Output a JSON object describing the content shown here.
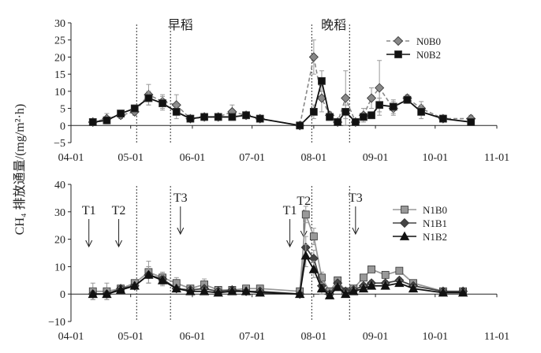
{
  "chart_data": [
    {
      "type": "line",
      "ylabel": "CH₄ 排放通量/(mg/m²·h)",
      "x_ticks": [
        "04-01",
        "05-01",
        "06-01",
        "07-01",
        "08-01",
        "09-01",
        "10-01",
        "11-01"
      ],
      "y_ticks": [
        "30",
        "25",
        "20",
        "15",
        "10",
        "5",
        "0",
        "−5"
      ],
      "ylim": [
        -5,
        30
      ],
      "xlim": [
        "04-01",
        "11-01"
      ],
      "grid": false,
      "legend_position": "top-right",
      "annotations": [
        {
          "text": "早稻",
          "x": "05-26"
        },
        {
          "text": "晚稻",
          "x": "08-11"
        }
      ],
      "vlines": [
        "05-04",
        "05-21",
        "07-31",
        "08-19"
      ],
      "series": [
        {
          "name": "N0B0",
          "color": "#888888",
          "line": "dashed",
          "marker": "diamond",
          "points": [
            [
              "04-12",
              1
            ],
            [
              "04-19",
              2
            ],
            [
              "04-26",
              3
            ],
            [
              "05-03",
              4
            ],
            [
              "05-10",
              9
            ],
            [
              "05-17",
              7
            ],
            [
              "05-24",
              6
            ],
            [
              "05-31",
              2
            ],
            [
              "06-07",
              2.5
            ],
            [
              "06-14",
              2.5
            ],
            [
              "06-21",
              4
            ],
            [
              "06-28",
              3
            ],
            [
              "07-05",
              2
            ],
            [
              "07-25",
              0
            ],
            [
              "08-01",
              20
            ],
            [
              "08-05",
              8
            ],
            [
              "08-09",
              3
            ],
            [
              "08-13",
              1
            ],
            [
              "08-17",
              8
            ],
            [
              "08-22",
              1
            ],
            [
              "08-26",
              3
            ],
            [
              "08-30",
              8
            ],
            [
              "09-03",
              11
            ],
            [
              "09-10",
              5
            ],
            [
              "09-17",
              8
            ],
            [
              "09-24",
              5
            ],
            [
              "10-05",
              2
            ],
            [
              "10-19",
              2
            ]
          ],
          "err": [
            0.8,
            1.5,
            1,
            1,
            3,
            2,
            3,
            1,
            1,
            1,
            2,
            1,
            0.5,
            0.5,
            5,
            4,
            1,
            0.5,
            8,
            1,
            2,
            3,
            8,
            2,
            1,
            2,
            1,
            1
          ]
        },
        {
          "name": "N0B2",
          "color": "#111111",
          "line": "solid",
          "marker": "square",
          "points": [
            [
              "04-12",
              1
            ],
            [
              "04-19",
              1.5
            ],
            [
              "04-26",
              3.5
            ],
            [
              "05-03",
              5
            ],
            [
              "05-10",
              8
            ],
            [
              "05-17",
              6.5
            ],
            [
              "05-24",
              4
            ],
            [
              "05-31",
              2
            ],
            [
              "06-07",
              2.5
            ],
            [
              "06-14",
              2.5
            ],
            [
              "06-21",
              2.5
            ],
            [
              "06-28",
              3
            ],
            [
              "07-05",
              2
            ],
            [
              "07-25",
              0
            ],
            [
              "08-01",
              4
            ],
            [
              "08-05",
              13
            ],
            [
              "08-09",
              2.5
            ],
            [
              "08-13",
              1
            ],
            [
              "08-17",
              4
            ],
            [
              "08-22",
              1
            ],
            [
              "08-26",
              2.5
            ],
            [
              "08-30",
              3
            ],
            [
              "09-03",
              6
            ],
            [
              "09-10",
              5.5
            ],
            [
              "09-17",
              7.5
            ],
            [
              "09-24",
              4
            ],
            [
              "10-05",
              2
            ],
            [
              "10-19",
              1
            ]
          ],
          "err": [
            0.5,
            1,
            1,
            1,
            2,
            2,
            2,
            1,
            1,
            1,
            1,
            1,
            0.5,
            0.5,
            2,
            3,
            1,
            0.5,
            2,
            1,
            1,
            1,
            2,
            2,
            1,
            2,
            1,
            1
          ]
        }
      ]
    },
    {
      "type": "line",
      "x_ticks": [
        "04-01",
        "05-01",
        "06-01",
        "07-01",
        "08-01",
        "09-01",
        "10-01",
        "11-01"
      ],
      "y_ticks": [
        "40",
        "30",
        "20",
        "10",
        "0",
        "−10"
      ],
      "ylim": [
        -10,
        40
      ],
      "xlim": [
        "04-01",
        "11-01"
      ],
      "grid": false,
      "legend_position": "top-right",
      "vlines": [
        "05-04",
        "05-21",
        "07-31",
        "08-19"
      ],
      "annotations": [
        {
          "text": "T1",
          "x": "04-10"
        },
        {
          "text": "T2",
          "x": "04-25"
        },
        {
          "text": "T3",
          "x": "05-26"
        },
        {
          "text": "T1",
          "x": "07-20"
        },
        {
          "text": "T2",
          "x": "07-27"
        },
        {
          "text": "T3",
          "x": "08-22"
        }
      ],
      "series": [
        {
          "name": "N1B0",
          "color": "#999999",
          "line": "solid",
          "marker": "square",
          "points": [
            [
              "04-12",
              1
            ],
            [
              "04-19",
              1
            ],
            [
              "04-26",
              2
            ],
            [
              "05-03",
              4
            ],
            [
              "05-10",
              8
            ],
            [
              "05-17",
              6
            ],
            [
              "05-24",
              4
            ],
            [
              "05-31",
              2
            ],
            [
              "06-07",
              3.5
            ],
            [
              "06-14",
              1.5
            ],
            [
              "06-21",
              1.5
            ],
            [
              "06-28",
              2
            ],
            [
              "07-05",
              2
            ],
            [
              "07-25",
              1
            ],
            [
              "07-28",
              29
            ],
            [
              "08-01",
              21
            ],
            [
              "08-05",
              6
            ],
            [
              "08-09",
              1
            ],
            [
              "08-13",
              5
            ],
            [
              "08-17",
              1
            ],
            [
              "08-21",
              2
            ],
            [
              "08-26",
              6
            ],
            [
              "08-30",
              9
            ],
            [
              "09-06",
              7
            ],
            [
              "09-13",
              8.5
            ],
            [
              "09-20",
              4
            ],
            [
              "10-05",
              1
            ],
            [
              "10-15",
              1
            ]
          ],
          "err": [
            3,
            3,
            1,
            1,
            4,
            2,
            2,
            1,
            2,
            1,
            1,
            1,
            1,
            1,
            3,
            3,
            2,
            1,
            1,
            1,
            1,
            1,
            1,
            1,
            1,
            1,
            1,
            1
          ]
        },
        {
          "name": "N1B1",
          "color": "#444444",
          "line": "solid",
          "marker": "diamond",
          "points": [
            [
              "04-12",
              0
            ],
            [
              "04-19",
              0
            ],
            [
              "04-26",
              2
            ],
            [
              "05-03",
              3
            ],
            [
              "05-10",
              7
            ],
            [
              "05-17",
              5.5
            ],
            [
              "05-24",
              2
            ],
            [
              "05-31",
              1.5
            ],
            [
              "06-07",
              2
            ],
            [
              "06-14",
              1
            ],
            [
              "06-21",
              1.5
            ],
            [
              "06-28",
              1
            ],
            [
              "07-05",
              1
            ],
            [
              "07-25",
              0
            ],
            [
              "07-28",
              17
            ],
            [
              "08-01",
              13
            ],
            [
              "08-05",
              3
            ],
            [
              "08-09",
              0
            ],
            [
              "08-13",
              4
            ],
            [
              "08-17",
              1
            ],
            [
              "08-21",
              1.5
            ],
            [
              "08-26",
              3
            ],
            [
              "08-30",
              4
            ],
            [
              "09-06",
              4
            ],
            [
              "09-13",
              5
            ],
            [
              "09-20",
              3
            ],
            [
              "10-05",
              1
            ],
            [
              "10-15",
              1
            ]
          ],
          "err": [
            2,
            2,
            1,
            1,
            3,
            2,
            1,
            1,
            1,
            1,
            1,
            1,
            1,
            1,
            4,
            3,
            2,
            1,
            1,
            1,
            1,
            1,
            1,
            1,
            1,
            1,
            1,
            1
          ]
        },
        {
          "name": "N1B2",
          "color": "#111111",
          "line": "solid",
          "marker": "triangle",
          "points": [
            [
              "04-12",
              0
            ],
            [
              "04-19",
              0
            ],
            [
              "04-26",
              1.5
            ],
            [
              "05-03",
              3
            ],
            [
              "05-10",
              7
            ],
            [
              "05-17",
              5
            ],
            [
              "05-24",
              2
            ],
            [
              "05-31",
              1
            ],
            [
              "06-07",
              1
            ],
            [
              "06-14",
              0.5
            ],
            [
              "06-21",
              1
            ],
            [
              "06-28",
              1
            ],
            [
              "07-05",
              0.5
            ],
            [
              "07-25",
              0
            ],
            [
              "07-28",
              14
            ],
            [
              "08-01",
              9
            ],
            [
              "08-05",
              2
            ],
            [
              "08-09",
              -0.5
            ],
            [
              "08-13",
              2.5
            ],
            [
              "08-17",
              0
            ],
            [
              "08-21",
              1
            ],
            [
              "08-26",
              2
            ],
            [
              "08-30",
              3
            ],
            [
              "09-06",
              3
            ],
            [
              "09-13",
              4
            ],
            [
              "09-20",
              2
            ],
            [
              "10-05",
              0.5
            ],
            [
              "10-15",
              0.5
            ]
          ],
          "err": [
            2,
            2,
            1,
            1,
            3,
            2,
            1,
            1,
            1,
            1,
            1,
            1,
            1,
            1,
            4,
            3,
            2,
            1,
            1,
            1,
            1,
            1,
            1,
            1,
            1,
            1,
            1,
            1
          ]
        }
      ]
    }
  ]
}
